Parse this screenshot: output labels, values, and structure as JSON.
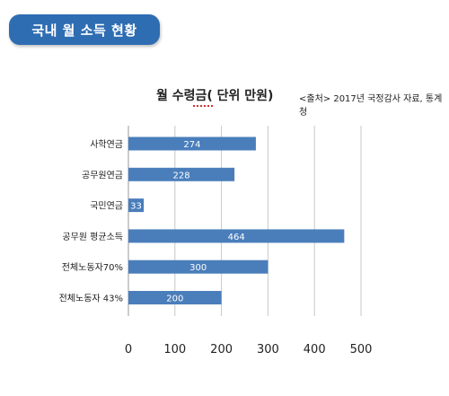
{
  "header": {
    "title": "국내 월 소득 현황"
  },
  "chart_data": {
    "type": "bar",
    "orientation": "horizontal",
    "title": "월 수령금( 단위 만원)",
    "source": "<출처> 2017년 국정감사 자료, 통계청",
    "categories": [
      "사학연금",
      "공무원연금",
      "국민연금",
      "공무원 평균소득",
      "전체노동자70%",
      "전체노동자 43%"
    ],
    "values": [
      274,
      228,
      33,
      464,
      300,
      200
    ],
    "xlim": [
      0,
      500
    ],
    "xticks": [
      0,
      100,
      200,
      300,
      400,
      500
    ],
    "grid": "vertical",
    "bar_color": "#4a7ebb",
    "header_color": "#2f6db3"
  }
}
